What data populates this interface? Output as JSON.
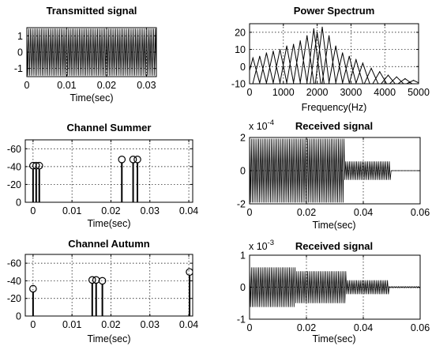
{
  "figure": {
    "background": "#ffffff",
    "line_color": "#000000"
  },
  "chart_data": [
    {
      "id": "transmitted",
      "type": "line",
      "title": "Transmitted signal",
      "xlabel": "Time(sec)",
      "ylabel": "",
      "xlim": [
        0,
        0.0325
      ],
      "ylim": [
        -1.5,
        1.5
      ],
      "xticks": [
        0,
        0.01,
        0.02,
        0.03
      ],
      "xticklabels": [
        "0",
        "0.01",
        "0.02",
        "0.03"
      ],
      "yticks": [
        1,
        0,
        -1
      ],
      "yticklabels": [
        "1",
        "0",
        "-1"
      ],
      "grid": true,
      "signal": {
        "kind": "dense-oscillation",
        "t_end": 0.0325,
        "segments": [
          [
            0,
            0.0325,
            1.0
          ]
        ]
      }
    },
    {
      "id": "spectrum",
      "type": "line",
      "title": "Power Spectrum",
      "xlabel": "Frequency(Hz)",
      "ylabel": "",
      "xlim": [
        0,
        5000
      ],
      "ylim": [
        -10,
        25
      ],
      "xticks": [
        0,
        1000,
        2000,
        3000,
        4000,
        5000
      ],
      "xticklabels": [
        "0",
        "1000",
        "2000",
        "3000",
        "4000",
        "5000"
      ],
      "yticks": [
        20,
        10,
        0,
        -10
      ],
      "yticklabels": [
        "20",
        "10",
        "0",
        "-10"
      ],
      "grid": true,
      "peaks": [
        {
          "f": 100,
          "db": 5
        },
        {
          "f": 300,
          "db": 6
        },
        {
          "f": 500,
          "db": 8
        },
        {
          "f": 700,
          "db": 9
        },
        {
          "f": 900,
          "db": 10
        },
        {
          "f": 1100,
          "db": 12
        },
        {
          "f": 1300,
          "db": 13
        },
        {
          "f": 1500,
          "db": 15
        },
        {
          "f": 1700,
          "db": 18
        },
        {
          "f": 1900,
          "db": 22
        },
        {
          "f": 2000,
          "db": 20
        },
        {
          "f": 2150,
          "db": 23
        },
        {
          "f": 2350,
          "db": 18
        },
        {
          "f": 2550,
          "db": 12
        },
        {
          "f": 2750,
          "db": 8
        },
        {
          "f": 2950,
          "db": 6
        },
        {
          "f": 3150,
          "db": 4
        },
        {
          "f": 3350,
          "db": 2
        },
        {
          "f": 3600,
          "db": -1
        },
        {
          "f": 3850,
          "db": -3
        },
        {
          "f": 4100,
          "db": -5
        },
        {
          "f": 4350,
          "db": -6
        },
        {
          "f": 4600,
          "db": -7
        },
        {
          "f": 4850,
          "db": -8
        }
      ],
      "floor_db": -10
    },
    {
      "id": "channel-summer",
      "type": "stem",
      "title": "Channel Summer",
      "xlabel": "Time(sec)",
      "ylabel": "",
      "xlim": [
        -0.002,
        0.041
      ],
      "ylim": [
        0,
        70
      ],
      "xticks": [
        0,
        0.01,
        0.02,
        0.03,
        0.04
      ],
      "xticklabels": [
        "0",
        "0.01",
        "0.02",
        "0.03",
        "0.04"
      ],
      "yticks": [
        60,
        40,
        20,
        0
      ],
      "yticklabels": [
        "-60",
        "-40",
        "-20",
        "0"
      ],
      "grid": true,
      "stems": [
        {
          "x": 0.0,
          "y": 41
        },
        {
          "x": 0.0008,
          "y": 41
        },
        {
          "x": 0.0016,
          "y": 41
        },
        {
          "x": 0.0228,
          "y": 48
        },
        {
          "x": 0.0257,
          "y": 48
        },
        {
          "x": 0.0268,
          "y": 48
        }
      ]
    },
    {
      "id": "received-summer",
      "type": "line",
      "title": "Received signal",
      "xlabel": "Time(sec)",
      "ylabel": "",
      "multiplier": "x 10",
      "multiplier_exp": "-4",
      "xlim": [
        0,
        0.06
      ],
      "ylim": [
        -2,
        2
      ],
      "xticks": [
        0,
        0.02,
        0.04,
        0.06
      ],
      "xticklabels": [
        "0",
        "0.02",
        "0.04",
        "0.06"
      ],
      "yticks": [
        2,
        0,
        -2
      ],
      "yticklabels": [
        "2",
        "0",
        "-2"
      ],
      "grid": true,
      "signal": {
        "kind": "dense-oscillation",
        "t_end": 0.06,
        "segments": [
          [
            0,
            0.0335,
            1.0
          ],
          [
            0.0335,
            0.0495,
            0.28
          ]
        ]
      }
    },
    {
      "id": "channel-autumn",
      "type": "stem",
      "title": "Channel Autumn",
      "xlabel": "Time(sec)",
      "ylabel": "",
      "xlim": [
        -0.002,
        0.041
      ],
      "ylim": [
        0,
        70
      ],
      "xticks": [
        0,
        0.01,
        0.02,
        0.03,
        0.04
      ],
      "xticklabels": [
        "0",
        "0.01",
        "0.02",
        "0.03",
        "0.04"
      ],
      "yticks": [
        60,
        40,
        20,
        0
      ],
      "yticklabels": [
        "-60",
        "-40",
        "-20",
        "0"
      ],
      "grid": true,
      "stems": [
        {
          "x": 0.0,
          "y": 31
        },
        {
          "x": 0.0152,
          "y": 41
        },
        {
          "x": 0.0162,
          "y": 41
        },
        {
          "x": 0.0178,
          "y": 40
        },
        {
          "x": 0.0402,
          "y": 50
        }
      ]
    },
    {
      "id": "received-autumn",
      "type": "line",
      "title": "Received signal",
      "xlabel": "Time(sec)",
      "ylabel": "",
      "multiplier": "x 10",
      "multiplier_exp": "-3",
      "xlim": [
        0,
        0.06
      ],
      "ylim": [
        -1,
        1
      ],
      "xticks": [
        0,
        0.02,
        0.04,
        0.06
      ],
      "xticklabels": [
        "0",
        "0.02",
        "0.04",
        "0.06"
      ],
      "yticks": [
        1,
        0,
        -1
      ],
      "yticklabels": [
        "1",
        "0",
        "-1"
      ],
      "grid": true,
      "signal": {
        "kind": "dense-oscillation",
        "t_end": 0.06,
        "segments": [
          [
            0,
            0.016,
            0.62
          ],
          [
            0.016,
            0.034,
            0.5
          ],
          [
            0.034,
            0.049,
            0.22
          ],
          [
            0.049,
            0.06,
            0.02
          ]
        ]
      }
    }
  ]
}
